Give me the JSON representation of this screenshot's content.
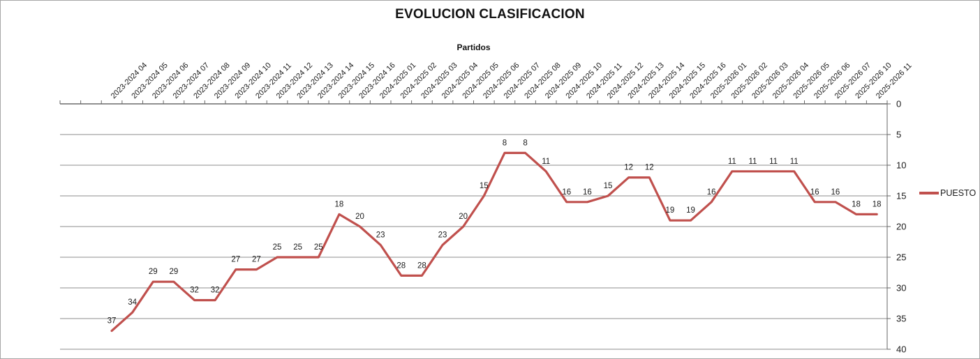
{
  "window": {
    "background": "#FFFFFF",
    "border_color": "#A6A6A6"
  },
  "chart_data": {
    "type": "line",
    "title": "EVOLUCION CLASIFICACION",
    "xlabel": "Partidos",
    "ylabel": "",
    "legend_position": "right",
    "grid": true,
    "data_labels": true,
    "categories": [
      "2023-2024 04",
      "2023-2024 05",
      "2023-2024 06",
      "2023-2024 07",
      "2023-2024 08",
      "2023-2024 09",
      "2023-2024 10",
      "2023-2024 11",
      "2023-2024 12",
      "2023-2024 13",
      "2023-2024 14",
      "2023-2024 15",
      "2023-2024 16",
      "2024-2025 01",
      "2024-2025 02",
      "2024-2025 03",
      "2024-2025 04",
      "2024-2025 05",
      "2024-2025 06",
      "2024-2025 07",
      "2024-2025 08",
      "2024-2025 09",
      "2024-2025 10",
      "2024-2025 11",
      "2024-2025 12",
      "2024-2025 13",
      "2024-2025 14",
      "2024-2025 15",
      "2024-2025 16",
      "2025-2026 01",
      "2025-2026 02",
      "2025-2026 03",
      "2025-2026 04",
      "2025-2026 05",
      "2025-2026 06",
      "2025-2026 07",
      "2025-2026 10",
      "2025-2026 11"
    ],
    "series": [
      {
        "name": "PUESTO",
        "color": "#C0504D",
        "values": [
          37,
          34,
          29,
          29,
          32,
          32,
          27,
          27,
          25,
          25,
          25,
          18,
          20,
          23,
          28,
          28,
          23,
          20,
          15,
          8,
          8,
          11,
          16,
          16,
          15,
          12,
          12,
          19,
          19,
          16,
          11,
          11,
          11,
          11,
          16,
          16,
          18,
          18
        ]
      }
    ],
    "y_axis": {
      "min": 0,
      "max": 40,
      "step": 5,
      "reversed": true,
      "side": "right",
      "ticks": [
        0,
        5,
        10,
        15,
        20,
        25,
        30,
        35,
        40
      ]
    },
    "x_axis": {
      "leading_empty_slots": 2,
      "label_rotation_deg": 45
    },
    "colors": {
      "gridline": "#8C8C8C",
      "axis": "#666666",
      "axis_dark": "#4D4D4D",
      "text": "#1A1A1A"
    }
  }
}
